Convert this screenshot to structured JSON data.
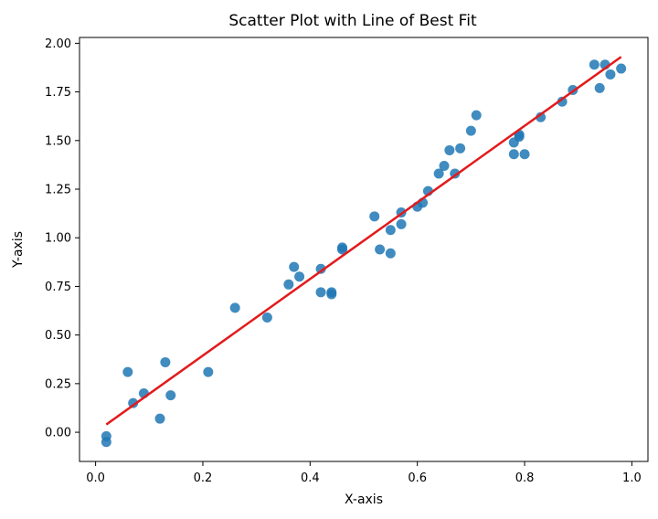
{
  "chart_data": {
    "type": "scatter",
    "title": "Scatter Plot with Line of Best Fit",
    "xlabel": "X-axis",
    "ylabel": "Y-axis",
    "xlim": [
      -0.03,
      1.03
    ],
    "ylim": [
      -0.15,
      2.03
    ],
    "x_ticks": [
      0.0,
      0.2,
      0.4,
      0.6,
      0.8,
      1.0
    ],
    "x_tick_labels": [
      "0.0",
      "0.2",
      "0.4",
      "0.6",
      "0.8",
      "1.0"
    ],
    "y_ticks": [
      0.0,
      0.25,
      0.5,
      0.75,
      1.0,
      1.25,
      1.5,
      1.75,
      2.0
    ],
    "y_tick_labels": [
      "0.00",
      "0.25",
      "0.50",
      "0.75",
      "1.00",
      "1.25",
      "1.50",
      "1.75",
      "2.00"
    ],
    "grid": false,
    "series": [
      {
        "kind": "points",
        "color": "#1f77b4",
        "points": [
          [
            0.02,
            -0.02
          ],
          [
            0.02,
            -0.05
          ],
          [
            0.06,
            0.31
          ],
          [
            0.07,
            0.15
          ],
          [
            0.09,
            0.2
          ],
          [
            0.12,
            0.07
          ],
          [
            0.13,
            0.36
          ],
          [
            0.14,
            0.19
          ],
          [
            0.21,
            0.31
          ],
          [
            0.26,
            0.64
          ],
          [
            0.32,
            0.59
          ],
          [
            0.36,
            0.76
          ],
          [
            0.37,
            0.85
          ],
          [
            0.38,
            0.8
          ],
          [
            0.42,
            0.84
          ],
          [
            0.42,
            0.72
          ],
          [
            0.44,
            0.72
          ],
          [
            0.44,
            0.71
          ],
          [
            0.46,
            0.95
          ],
          [
            0.46,
            0.94
          ],
          [
            0.52,
            1.11
          ],
          [
            0.53,
            0.94
          ],
          [
            0.55,
            1.04
          ],
          [
            0.55,
            0.92
          ],
          [
            0.57,
            1.13
          ],
          [
            0.57,
            1.07
          ],
          [
            0.6,
            1.16
          ],
          [
            0.61,
            1.18
          ],
          [
            0.62,
            1.24
          ],
          [
            0.64,
            1.33
          ],
          [
            0.65,
            1.37
          ],
          [
            0.66,
            1.45
          ],
          [
            0.67,
            1.33
          ],
          [
            0.68,
            1.46
          ],
          [
            0.7,
            1.55
          ],
          [
            0.71,
            1.63
          ],
          [
            0.78,
            1.43
          ],
          [
            0.78,
            1.49
          ],
          [
            0.79,
            1.52
          ],
          [
            0.79,
            1.53
          ],
          [
            0.8,
            1.43
          ],
          [
            0.83,
            1.62
          ],
          [
            0.87,
            1.7
          ],
          [
            0.89,
            1.76
          ],
          [
            0.93,
            1.89
          ],
          [
            0.94,
            1.77
          ],
          [
            0.95,
            1.89
          ],
          [
            0.96,
            1.84
          ],
          [
            0.98,
            1.87
          ]
        ]
      },
      {
        "kind": "line",
        "color": "#e31a1c",
        "points": [
          [
            0.02,
            0.04
          ],
          [
            0.98,
            1.93
          ]
        ]
      }
    ]
  }
}
